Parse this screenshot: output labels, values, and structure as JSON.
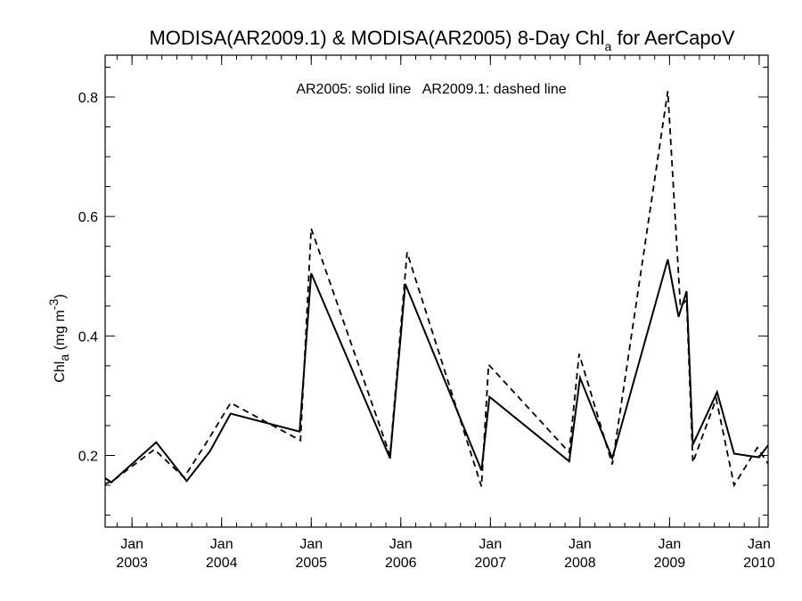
{
  "chart_data": {
    "type": "line",
    "title": {
      "main": "MODISA(AR2009.1) & MODISA(AR2005) 8-Day Chl",
      "sub": "a",
      "suffix": " for AerCapoV"
    },
    "ylabel": {
      "base": "Chl",
      "sub": "a",
      "mid": " (mg m",
      "sup": "-3",
      "end": ")"
    },
    "xlabel": "",
    "annotation": "AR2005: solid line   AR2009.1: dashed line",
    "xlim": [
      2002.7,
      2010.1
    ],
    "ylim": [
      0.08,
      0.87
    ],
    "y_ticks": [
      0.2,
      0.4,
      0.6,
      0.8
    ],
    "y_tick_labels": [
      "0.2",
      "0.4",
      "0.6",
      "0.8"
    ],
    "x_ticks": [
      {
        "value": 2003,
        "month": "Jan",
        "year": "2003"
      },
      {
        "value": 2004,
        "month": "Jan",
        "year": "2004"
      },
      {
        "value": 2005,
        "month": "Jan",
        "year": "2005"
      },
      {
        "value": 2006,
        "month": "Jan",
        "year": "2006"
      },
      {
        "value": 2007,
        "month": "Jan",
        "year": "2007"
      },
      {
        "value": 2008,
        "month": "Jan",
        "year": "2008"
      },
      {
        "value": 2009,
        "month": "Jan",
        "year": "2009"
      },
      {
        "value": 2010,
        "month": "Jan",
        "year": "2010"
      }
    ],
    "grid": false,
    "series": [
      {
        "name": "AR2005",
        "style": "solid",
        "color": "#000000",
        "x": [
          2002.7,
          2002.77,
          2003.27,
          2003.61,
          2003.87,
          2004.1,
          2004.87,
          2005.0,
          2005.88,
          2006.05,
          2006.9,
          2006.99,
          2007.88,
          2008.0,
          2008.36,
          2008.98,
          2009.1,
          2009.19,
          2009.26,
          2009.53,
          2009.72,
          2009.9,
          2010.0,
          2010.1
        ],
        "y": [
          0.162,
          0.155,
          0.222,
          0.157,
          0.207,
          0.27,
          0.24,
          0.505,
          0.195,
          0.487,
          0.175,
          0.298,
          0.19,
          0.33,
          0.195,
          0.528,
          0.432,
          0.475,
          0.218,
          0.306,
          0.203,
          0.199,
          0.197,
          0.217
        ]
      },
      {
        "name": "AR2009.1",
        "style": "dashed",
        "color": "#000000",
        "x": [
          2002.7,
          2002.79,
          2003.25,
          2003.58,
          2003.85,
          2004.1,
          2004.88,
          2005.0,
          2005.88,
          2006.07,
          2006.9,
          2006.98,
          2007.88,
          2007.99,
          2008.36,
          2008.98,
          2009.12,
          2009.19,
          2009.26,
          2009.52,
          2009.72,
          2009.98,
          2010.1
        ],
        "y": [
          0.152,
          0.158,
          0.21,
          0.163,
          0.226,
          0.288,
          0.225,
          0.58,
          0.2,
          0.54,
          0.148,
          0.352,
          0.205,
          0.37,
          0.185,
          0.81,
          0.45,
          0.46,
          0.188,
          0.295,
          0.15,
          0.213,
          0.186
        ]
      }
    ]
  }
}
